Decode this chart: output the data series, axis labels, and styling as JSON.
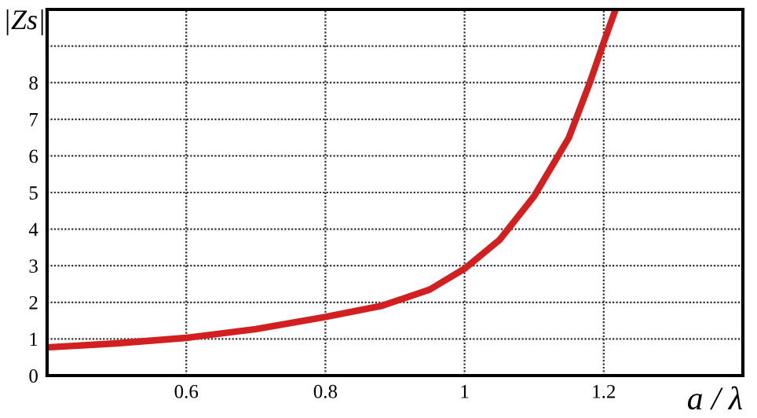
{
  "chart_data": {
    "type": "line",
    "xlabel": "a / λ",
    "ylabel": "|Zs|",
    "series": [
      {
        "color": "#d21f1f",
        "x": [
          0.4,
          0.5,
          0.6,
          0.7,
          0.8,
          0.88,
          0.95,
          1.0,
          1.05,
          1.1,
          1.15,
          1.18,
          1.2,
          1.217
        ],
        "values": [
          0.77,
          0.88,
          1.03,
          1.27,
          1.6,
          1.9,
          2.35,
          2.92,
          3.7,
          4.9,
          6.5,
          8.0,
          9.1,
          10
        ]
      }
    ],
    "xlim": [
      0.4,
      1.4
    ],
    "xticks": [
      0.6,
      0.8,
      {
        "value": 1,
        "label": "1"
      },
      1.2
    ],
    "ylim": [
      0,
      10
    ],
    "yticks": [
      0,
      1,
      2,
      3,
      4,
      5,
      6,
      7,
      8,
      {
        "value": 9,
        "label": null
      }
    ],
    "grid": true,
    "line_style": "solid",
    "marker": "none",
    "legend": false
  }
}
